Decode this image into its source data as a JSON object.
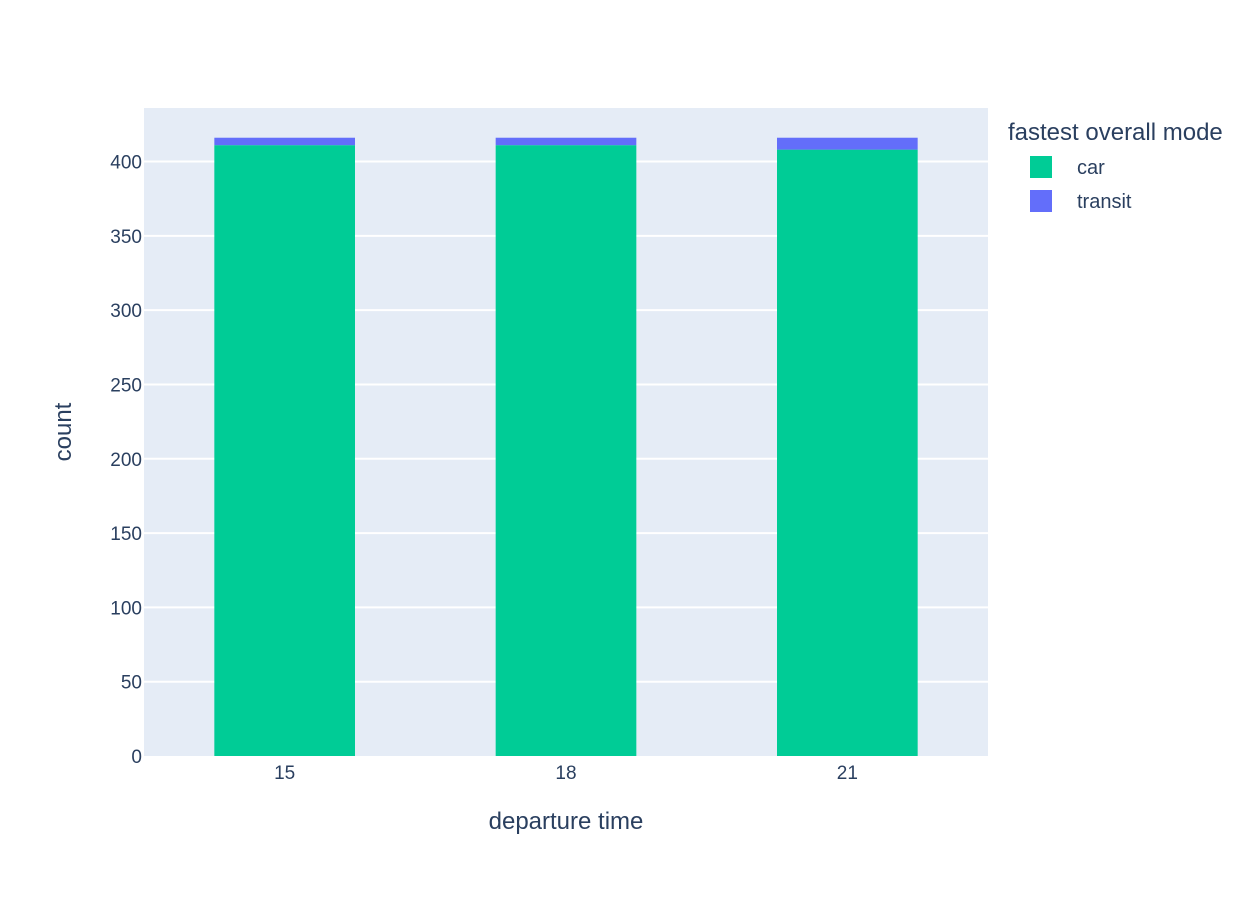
{
  "chart_data": {
    "type": "bar",
    "barmode": "stack",
    "categories": [
      "15",
      "18",
      "21"
    ],
    "series": [
      {
        "name": "car",
        "values": [
          411,
          411,
          408
        ],
        "color": "#00cc96"
      },
      {
        "name": "transit",
        "values": [
          5,
          5,
          8
        ],
        "color": "#636efa"
      }
    ],
    "xlabel": "departure time",
    "ylabel": "count",
    "ylim": [
      0,
      436
    ],
    "yticks": [
      0,
      50,
      100,
      150,
      200,
      250,
      300,
      350,
      400
    ],
    "grid": true,
    "legend_title": "fastest overall mode",
    "legend_position": "top-right",
    "plot_background": "#e5ecf6"
  }
}
